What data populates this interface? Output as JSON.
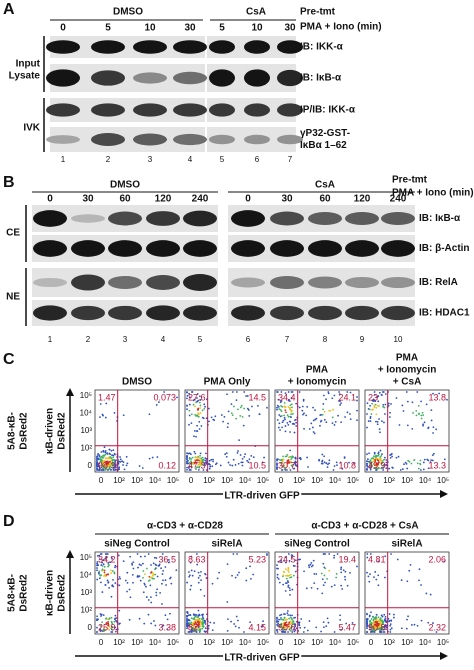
{
  "panel_a": {
    "label": "A",
    "groups": [
      "DMSO",
      "CsA"
    ],
    "pretmt": "Pre-tmt",
    "pma": "PMA + Iono (min)",
    "lanes": [
      "0",
      "5",
      "10",
      "30",
      "5",
      "10",
      "30"
    ],
    "sections": [
      {
        "lines": [
          "Input",
          "Lysate"
        ]
      },
      {
        "lines": [
          "IVK"
        ]
      }
    ],
    "blots": [
      {
        "lines": [
          "IB: IKK-α"
        ]
      },
      {
        "lines": [
          "IB: IκB-α"
        ]
      },
      {
        "lines": [
          "IP/IB: IKK-α"
        ]
      },
      {
        "lines": [
          "γP32-GST-",
          "IκBα 1–62"
        ]
      }
    ],
    "lane_numbers": [
      "1",
      "2",
      "3",
      "4",
      "5",
      "6",
      "7"
    ]
  },
  "panel_b": {
    "label": "B",
    "groups": [
      "DMSO",
      "CsA"
    ],
    "pretmt": "Pre-tmt",
    "pma": "PMA + Iono (min)",
    "lanes": [
      "0",
      "30",
      "60",
      "120",
      "240",
      "0",
      "30",
      "60",
      "120",
      "240"
    ],
    "sections": [
      "CE",
      "NE"
    ],
    "blots": [
      "IB: IκB-α",
      "IB: β-Actin",
      "IB: RelA",
      "IB: HDAC1"
    ],
    "lane_numbers": [
      "1",
      "2",
      "3",
      "4",
      "5",
      "6",
      "7",
      "8",
      "9",
      "10"
    ]
  },
  "panel_c": {
    "label": "C",
    "y_label": [
      "5A8-κB-",
      "DsRed2"
    ],
    "y_axis": [
      "κB-driven",
      "DsRed2"
    ],
    "x_axis": "LTR-driven GFP",
    "yticks": [
      "10⁵",
      "10⁴",
      "10³",
      "10²",
      "0"
    ],
    "xticks": [
      "0",
      "10²",
      "10³",
      "10⁴",
      "10⁵"
    ],
    "plots": [
      {
        "title": [
          "DMSO"
        ],
        "quadrants": [
          "1.47",
          "0.073",
          "98.3",
          "0.12"
        ]
      },
      {
        "title": [
          "PMA Only"
        ],
        "quadrants": [
          "27.6",
          "14.5",
          "47.3",
          "10.5"
        ]
      },
      {
        "title": [
          "PMA",
          "+ Ionomycin"
        ],
        "quadrants": [
          "34.4",
          "24.1",
          "30.7",
          "10.8"
        ]
      },
      {
        "title": [
          "PMA",
          "+ Ionomycin",
          "+ CsA"
        ],
        "quadrants": [
          "23",
          "13.8",
          "49.9",
          "13.3"
        ]
      }
    ]
  },
  "panel_d": {
    "label": "D",
    "y_label": [
      "5A8-κB-",
      "DsRed2"
    ],
    "y_axis": [
      "κB-driven",
      "DsRed2"
    ],
    "x_axis": "LTR-driven GFP",
    "groups": [
      "α-CD3 + α-CD28",
      "α-CD3 + α-CD28 + CsA"
    ],
    "yticks": [
      "10⁵",
      "10⁴",
      "10³",
      "10²",
      "0"
    ],
    "xticks": [
      "0",
      "10²",
      "10³",
      "10⁴",
      "10⁵"
    ],
    "plots": [
      {
        "title": "siNeg Control",
        "quadrants": [
          "34.2",
          "36.5",
          "25.9",
          "3.38"
        ]
      },
      {
        "title": "siRelA",
        "quadrants": [
          "8.63",
          "5.23",
          "82",
          "4.15"
        ]
      },
      {
        "title": "siNeg Control",
        "quadrants": [
          "24.5",
          "19.4",
          "50.6",
          "5.47"
        ]
      },
      {
        "title": "siRelA",
        "quadrants": [
          "4.81",
          "2.06",
          "90.8",
          "2.32"
        ]
      }
    ]
  }
}
